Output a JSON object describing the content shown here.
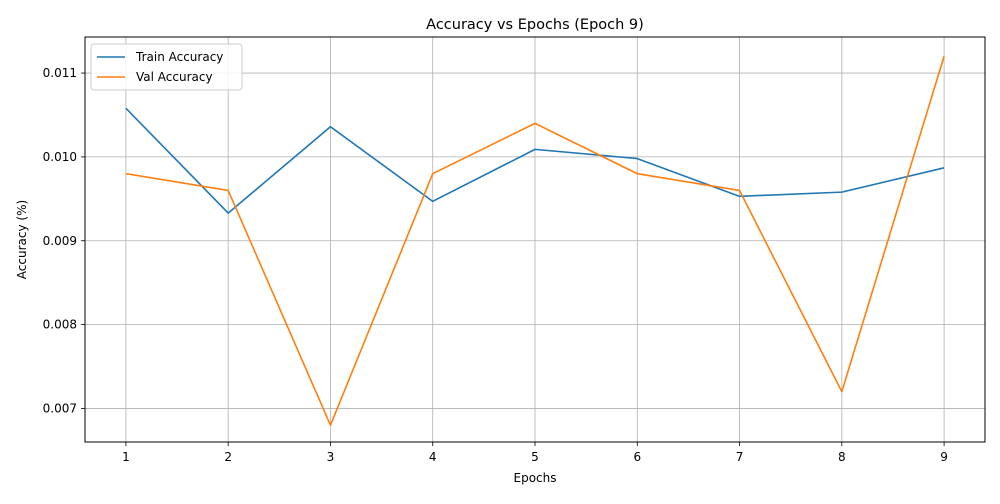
{
  "chart_data": {
    "type": "line",
    "title": "Accuracy vs Epochs (Epoch 9)",
    "xlabel": "Epochs",
    "ylabel": "Accuracy (%)",
    "x": [
      1,
      2,
      3,
      4,
      5,
      6,
      7,
      8,
      9
    ],
    "x_ticks": [
      "1",
      "2",
      "3",
      "4",
      "5",
      "6",
      "7",
      "8",
      "9"
    ],
    "y_ticks": [
      "0.007",
      "0.008",
      "0.009",
      "0.010",
      "0.011"
    ],
    "xlim": [
      0.6,
      9.4
    ],
    "ylim": [
      0.0066,
      0.01143
    ],
    "grid": true,
    "legend_position": "top-left",
    "series": [
      {
        "name": "Train Accuracy",
        "color": "#1f77b4",
        "values": [
          0.01058,
          0.00933,
          0.01036,
          0.00947,
          0.01009,
          0.00998,
          0.00953,
          0.00958,
          0.00987
        ]
      },
      {
        "name": "Val Accuracy",
        "color": "#ff7f0e",
        "values": [
          0.0098,
          0.0096,
          0.0068,
          0.0098,
          0.0104,
          0.0098,
          0.0096,
          0.0072,
          0.0112
        ]
      }
    ]
  }
}
